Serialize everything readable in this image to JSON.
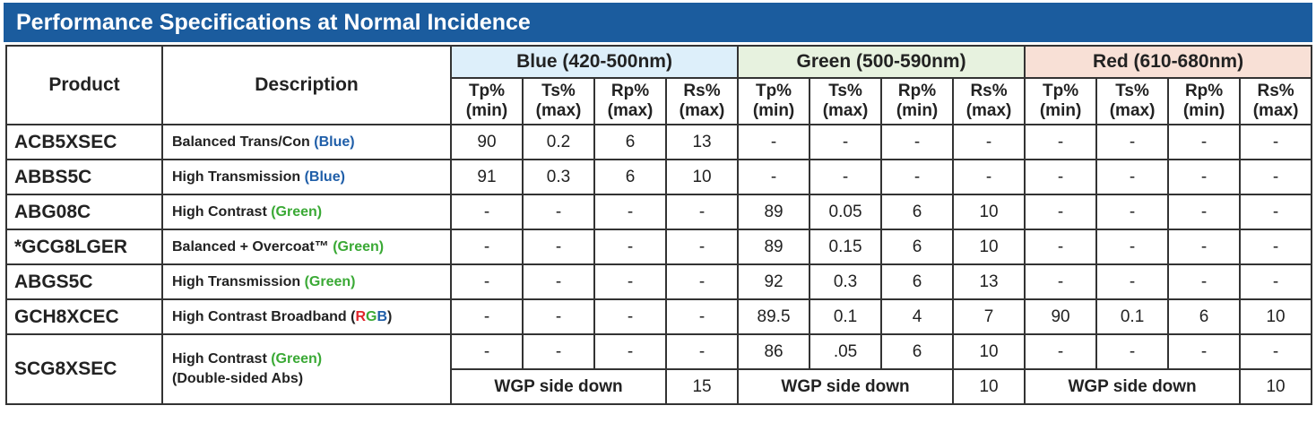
{
  "title": "Performance Specifications at Normal Incidence",
  "table": {
    "columns": {
      "product": "Product",
      "description": "Description"
    },
    "groups": [
      {
        "name": "Blue (420-500nm)",
        "color": "#ddeffa"
      },
      {
        "name": "Green (500-590nm)",
        "color": "#e7f2df"
      },
      {
        "name": "Red (610-680nm)",
        "color": "#f8e0d6"
      }
    ],
    "metrics": [
      {
        "name": "Tp%",
        "limit": "(min)"
      },
      {
        "name": "Ts%",
        "limit": "(max)"
      },
      {
        "name": "Rp%",
        "limit": "(max)"
      },
      {
        "name": "Rs%",
        "limit": "(max)"
      },
      {
        "name": "Tp%",
        "limit": "(min)"
      },
      {
        "name": "Ts%",
        "limit": "(max)"
      },
      {
        "name": "Rp%",
        "limit": "(min)"
      },
      {
        "name": "Rs%",
        "limit": "(max)"
      },
      {
        "name": "Tp%",
        "limit": "(min)"
      },
      {
        "name": "Ts%",
        "limit": "(max)"
      },
      {
        "name": "Rp%",
        "limit": "(min)"
      },
      {
        "name": "Rs%",
        "limit": "(max)"
      }
    ],
    "rows": [
      {
        "product": "ACB5XSEC",
        "description": [
          [
            {
              "text": "Balanced Trans/Con "
            },
            {
              "text": "(Blue)",
              "color": "#1f5ea8"
            }
          ]
        ],
        "values": [
          90,
          0.2,
          6,
          13,
          "-",
          "-",
          "-",
          "-",
          "-",
          "-",
          "-",
          "-"
        ]
      },
      {
        "product": "ABBS5C",
        "description": [
          [
            {
              "text": "High Transmission "
            },
            {
              "text": "(Blue)",
              "color": "#1f5ea8"
            }
          ]
        ],
        "values": [
          91,
          0.3,
          6,
          10,
          "-",
          "-",
          "-",
          "-",
          "-",
          "-",
          "-",
          "-"
        ]
      },
      {
        "product": "ABG08C",
        "description": [
          [
            {
              "text": "High Contrast "
            },
            {
              "text": "(Green)",
              "color": "#3aa935"
            }
          ]
        ],
        "values": [
          "-",
          "-",
          "-",
          "-",
          89,
          0.05,
          6,
          10,
          "-",
          "-",
          "-",
          "-"
        ]
      },
      {
        "product": "*GCG8LGER",
        "description": [
          [
            {
              "text": "Balanced + Overcoat™ "
            },
            {
              "text": "(Green)",
              "color": "#3aa935"
            }
          ]
        ],
        "values": [
          "-",
          "-",
          "-",
          "-",
          89,
          0.15,
          6,
          10,
          "-",
          "-",
          "-",
          "-"
        ]
      },
      {
        "product": "ABGS5C",
        "description": [
          [
            {
              "text": "High Transmission "
            },
            {
              "text": "(Green)",
              "color": "#3aa935"
            }
          ]
        ],
        "values": [
          "-",
          "-",
          "-",
          "-",
          92,
          0.3,
          6,
          13,
          "-",
          "-",
          "-",
          "-"
        ]
      },
      {
        "product": "GCH8XCEC",
        "description": [
          [
            {
              "text": "High Contrast Broadband ("
            },
            {
              "text": "R",
              "color": "#e0262b"
            },
            {
              "text": "G",
              "color": "#3aa935"
            },
            {
              "text": "B",
              "color": "#1f5ea8"
            },
            {
              "text": ")"
            }
          ]
        ],
        "values": [
          "-",
          "-",
          "-",
          "-",
          89.5,
          0.1,
          4,
          7,
          90,
          0.1,
          6,
          10
        ]
      },
      {
        "product": "SCG8XSEC",
        "description": [
          [
            {
              "text": "High Contrast "
            },
            {
              "text": "(Green)",
              "color": "#3aa935"
            }
          ],
          [
            {
              "text": "(Double-sided Abs)"
            }
          ]
        ],
        "values": [
          "-",
          "-",
          "-",
          "-",
          86,
          ".05",
          6,
          10,
          "-",
          "-",
          "-",
          "-"
        ],
        "wgp": [
          {
            "label": "WGP side down",
            "value": 15
          },
          {
            "label": "WGP side down",
            "value": 10
          },
          {
            "label": "WGP side down",
            "value": 10
          }
        ]
      }
    ]
  }
}
